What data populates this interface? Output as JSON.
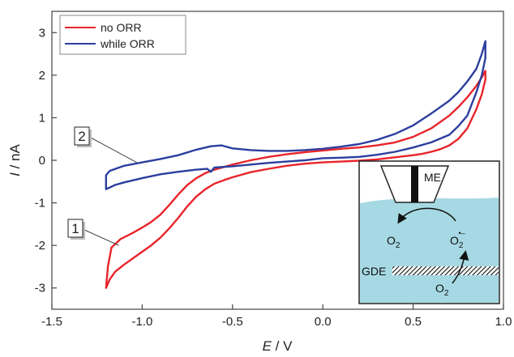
{
  "chart_data": {
    "type": "line",
    "xlabel_symbol": "E",
    "xlabel_unit": " / V",
    "ylabel_symbol": "I",
    "ylabel_unit": " / nA",
    "xlim": [
      -1.5,
      1.0
    ],
    "ylim": [
      -3.5,
      3.5
    ],
    "x_ticks": [
      -1.5,
      -1.0,
      -0.5,
      0.0,
      0.5,
      1.0
    ],
    "x_tick_labels": [
      "-1.5",
      "-1.0",
      "-0.5",
      "0.0",
      "0.5",
      "1.0"
    ],
    "y_ticks": [
      -3,
      -2,
      -1,
      0,
      1,
      2,
      3
    ],
    "y_tick_labels": [
      "-3",
      "-2",
      "-1",
      "0",
      "1",
      "2",
      "3"
    ],
    "grid": false,
    "legend_position": "top-left",
    "series": [
      {
        "name": "no ORR",
        "color": "#e8242a",
        "x": [
          0.0,
          -0.1,
          -0.2,
          -0.3,
          -0.4,
          -0.5,
          -0.55,
          -0.6,
          -0.65,
          -0.7,
          -0.75,
          -0.8,
          -0.85,
          -0.9,
          -0.95,
          -1.0,
          -1.05,
          -1.1,
          -1.15,
          -1.18,
          -1.2,
          -1.19,
          -1.17,
          -1.12,
          -1.05,
          -1.0,
          -0.95,
          -0.9,
          -0.85,
          -0.8,
          -0.75,
          -0.7,
          -0.65,
          -0.6,
          -0.5,
          -0.4,
          -0.3,
          -0.2,
          -0.1,
          0.0,
          0.1,
          0.2,
          0.3,
          0.4,
          0.5,
          0.6,
          0.7,
          0.75,
          0.8,
          0.85,
          0.88,
          0.9,
          0.9,
          0.88,
          0.85,
          0.8,
          0.75,
          0.7,
          0.65,
          0.6,
          0.55,
          0.5,
          0.4,
          0.3,
          0.2,
          0.1,
          0.0
        ],
        "y": [
          -0.05,
          -0.08,
          -0.13,
          -0.2,
          -0.28,
          -0.4,
          -0.47,
          -0.55,
          -0.68,
          -0.85,
          -1.08,
          -1.35,
          -1.6,
          -1.82,
          -2.0,
          -2.15,
          -2.3,
          -2.45,
          -2.62,
          -2.8,
          -3.0,
          -2.5,
          -2.05,
          -1.85,
          -1.7,
          -1.58,
          -1.45,
          -1.28,
          -1.05,
          -0.8,
          -0.58,
          -0.42,
          -0.3,
          -0.22,
          -0.1,
          0.0,
          0.08,
          0.14,
          0.19,
          0.23,
          0.27,
          0.3,
          0.35,
          0.42,
          0.55,
          0.75,
          1.05,
          1.25,
          1.48,
          1.75,
          1.95,
          2.1,
          1.9,
          1.55,
          1.2,
          0.75,
          0.5,
          0.35,
          0.26,
          0.2,
          0.15,
          0.12,
          0.07,
          0.02,
          -0.01,
          -0.03,
          -0.05
        ]
      },
      {
        "name": "while ORR",
        "color": "#2c3e9e",
        "x": [
          0.0,
          -0.1,
          -0.2,
          -0.3,
          -0.4,
          -0.5,
          -0.6,
          -0.62,
          -0.64,
          -0.7,
          -0.8,
          -0.9,
          -1.0,
          -1.1,
          -1.15,
          -1.2,
          -1.2,
          -1.18,
          -1.1,
          -1.0,
          -0.9,
          -0.8,
          -0.7,
          -0.62,
          -0.56,
          -0.5,
          -0.4,
          -0.3,
          -0.2,
          -0.1,
          0.0,
          0.1,
          0.2,
          0.3,
          0.4,
          0.5,
          0.6,
          0.7,
          0.75,
          0.8,
          0.85,
          0.88,
          0.9,
          0.9,
          0.88,
          0.85,
          0.8,
          0.75,
          0.7,
          0.6,
          0.5,
          0.4,
          0.3,
          0.2,
          0.1,
          0.0
        ],
        "y": [
          0.05,
          0.0,
          -0.03,
          -0.06,
          -0.1,
          -0.14,
          -0.17,
          -0.27,
          -0.2,
          -0.22,
          -0.27,
          -0.33,
          -0.42,
          -0.52,
          -0.58,
          -0.68,
          -0.35,
          -0.25,
          -0.13,
          -0.05,
          0.03,
          0.12,
          0.25,
          0.33,
          0.35,
          0.28,
          0.24,
          0.22,
          0.22,
          0.24,
          0.27,
          0.32,
          0.38,
          0.48,
          0.62,
          0.82,
          1.1,
          1.4,
          1.6,
          1.85,
          2.15,
          2.5,
          2.8,
          2.4,
          2.0,
          1.6,
          1.05,
          0.8,
          0.6,
          0.42,
          0.3,
          0.2,
          0.13,
          0.08,
          0.06,
          0.05
        ]
      }
    ],
    "callouts": [
      {
        "label": "2",
        "x": -1.03,
        "y": -0.05
      },
      {
        "label": "1",
        "x": -1.13,
        "y": -2.0
      }
    ]
  },
  "inset": {
    "me_label": "ME",
    "gde_label": "GDE",
    "o2_left": "O",
    "o2_left_sub": "2",
    "o2_right": "O",
    "o2_right_sub": "2",
    "o2_right_sup": "•–",
    "o2_bottom": "O",
    "o2_bottom_sub": "2",
    "electrolyte_color": "#a6d9e3"
  }
}
